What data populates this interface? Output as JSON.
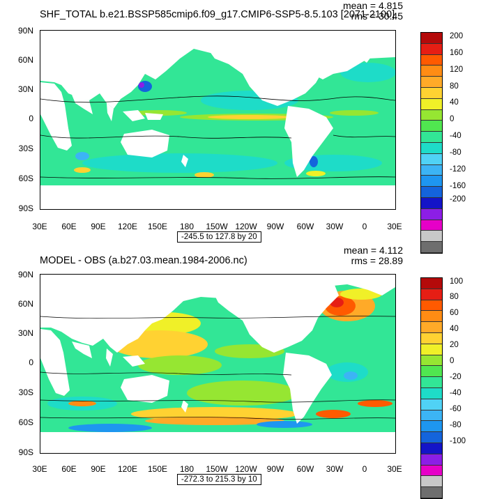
{
  "colors": {
    "palette": [
      "#6e6e6e",
      "#c8c8c8",
      "#e600c8",
      "#8c1ee6",
      "#1414c8",
      "#1464dc",
      "#1e96f0",
      "#3cb4f5",
      "#50d2f5",
      "#1edcc8",
      "#32e696",
      "#50e650",
      "#96e632",
      "#f0f028",
      "#ffd232",
      "#ffaa28",
      "#ff8c14",
      "#ff5a00",
      "#e61e14",
      "#b40a0a"
    ],
    "ocean_base": "#32e696",
    "land": "#ffffff"
  },
  "panels": [
    {
      "title": "SHF_TOTAL b.e21.BSSP585cmip6.f09_g17.CMIP6-SSP5-8.5.103 [2071-2100]",
      "mean": "mean = 4.815",
      "rms": "rms = 30.45",
      "range": "-245.5 to 127.8 by 20",
      "colorbar_labels": [
        "200",
        "160",
        "120",
        "80",
        "40",
        "0",
        "-40",
        "-80",
        "-120",
        "-160",
        "-200"
      ]
    },
    {
      "title": "MODEL - OBS (a.b27.03.mean.1984-2006.nc)",
      "mean": "mean = 4.112",
      "rms": "rms = 28.89",
      "range": "-272.3 to 215.3 by 10",
      "colorbar_labels": [
        "100",
        "80",
        "60",
        "40",
        "20",
        "0",
        "-20",
        "-40",
        "-60",
        "-80",
        "-100"
      ]
    }
  ],
  "lat_labels": [
    "90N",
    "60N",
    "30N",
    "0",
    "30S",
    "60S",
    "90S"
  ],
  "lon_labels": [
    "30E",
    "60E",
    "90E",
    "120E",
    "150E",
    "180",
    "150W",
    "120W",
    "90W",
    "60W",
    "30W",
    "0",
    "30E"
  ]
}
